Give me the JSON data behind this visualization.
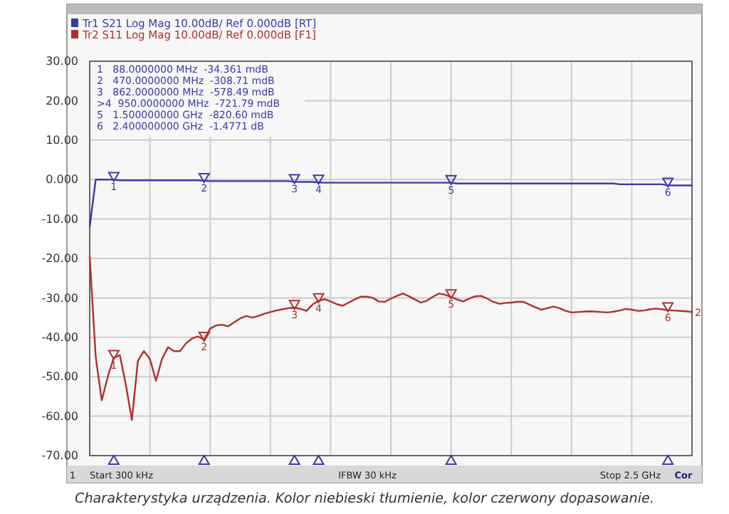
{
  "chart_data": {
    "type": "line",
    "categories": [
      null,
      null,
      null,
      null,
      null,
      null,
      null,
      null,
      null,
      null,
      null,
      null,
      null,
      null,
      null,
      null,
      null,
      null,
      null,
      null,
      null,
      null,
      null,
      null,
      null,
      null,
      null,
      null,
      null,
      null,
      null,
      null,
      null,
      null,
      null,
      null,
      null,
      null,
      null,
      null,
      null,
      null,
      null,
      null,
      null,
      null,
      null,
      null,
      null,
      null,
      null,
      null,
      null,
      null,
      null,
      null,
      null,
      null,
      null,
      null,
      null,
      null,
      null,
      null,
      null,
      null,
      null,
      null,
      null,
      null,
      null,
      null,
      null,
      null,
      null,
      null,
      null,
      null,
      null,
      null,
      null,
      null,
      null,
      null,
      null,
      null,
      null,
      null,
      null,
      null,
      null,
      null,
      null,
      null,
      null,
      null,
      null,
      null,
      null,
      null,
      null
    ],
    "ylim": [
      -70,
      30
    ],
    "yticks": [
      {
        "value": 30,
        "label": "30.00"
      },
      {
        "value": 20,
        "label": "20.00"
      },
      {
        "value": 10,
        "label": "10.00"
      },
      {
        "value": 0,
        "label": "0.000"
      },
      {
        "value": -10,
        "label": "-10.00"
      },
      {
        "value": -20,
        "label": "-20.00"
      },
      {
        "value": -30,
        "label": "-30.00"
      },
      {
        "value": -40,
        "label": "-40.00"
      },
      {
        "value": -50,
        "label": "-50.00"
      },
      {
        "value": -60,
        "label": "-60.00"
      },
      {
        "value": -70,
        "label": "-70.00"
      }
    ],
    "grid": true,
    "legend": "top left",
    "marker": "none",
    "line_style": "solid",
    "series": [
      {
        "name": "Tr1 S21 Log Mag 10.00dB/ Ref 0.000dB [RT]",
        "color": "#3a3aa8",
        "values": [
          -12,
          0,
          0,
          0,
          -0.034,
          -0.2,
          -0.2,
          -0.2,
          -0.2,
          -0.2,
          -0.2,
          -0.2,
          -0.2,
          -0.2,
          -0.2,
          -0.2,
          -0.2,
          -0.2,
          -0.2,
          -0.309,
          -0.4,
          -0.4,
          -0.4,
          -0.4,
          -0.4,
          -0.4,
          -0.4,
          -0.4,
          -0.4,
          -0.4,
          -0.4,
          -0.4,
          -0.4,
          -0.4,
          -0.578,
          -0.6,
          -0.6,
          -0.6,
          -0.722,
          -0.8,
          -0.8,
          -0.8,
          -0.8,
          -0.8,
          -0.8,
          -0.8,
          -0.8,
          -0.8,
          -0.8,
          -0.8,
          -0.8,
          -0.8,
          -0.8,
          -0.8,
          -0.8,
          -0.8,
          -0.8,
          -0.8,
          -0.8,
          -0.8,
          -0.821,
          -1,
          -1,
          -1,
          -1,
          -1,
          -1,
          -1,
          -1,
          -1,
          -1,
          -1,
          -1,
          -1,
          -1,
          -1,
          -1,
          -1,
          -1,
          -1,
          -1,
          -1,
          -1,
          -1,
          -1,
          -1,
          -1,
          -1,
          -1.2,
          -1.2,
          -1.2,
          -1.2,
          -1.2,
          -1.2,
          -1.2,
          -1.2,
          -1.477,
          -1.5,
          -1.5,
          -1.5,
          -1.5
        ]
      },
      {
        "name": "Tr2 S11 Log Mag 10.00dB/ Ref 0.000dB [F1]",
        "color": "#b03030",
        "values": [
          -19.5,
          -45,
          -56,
          -50,
          -45.2,
          -44.5,
          -52,
          -61,
          -46,
          -43.5,
          -45.5,
          -51,
          -45.5,
          -42.5,
          -43.5,
          -43.5,
          -41.5,
          -40.3,
          -39.8,
          -40.6,
          -37.8,
          -37,
          -36.8,
          -37.2,
          -36.2,
          -35.2,
          -34.6,
          -35,
          -34.6,
          -34,
          -33.6,
          -33.2,
          -32.9,
          -32.6,
          -32.5,
          -32.8,
          -33.3,
          -31.7,
          -30.8,
          -30.3,
          -30.9,
          -31.6,
          -32,
          -31.2,
          -30.4,
          -29.7,
          -29.7,
          -30,
          -30.9,
          -31,
          -30.2,
          -29.5,
          -28.9,
          -29.6,
          -30.4,
          -31.2,
          -30.7,
          -29.7,
          -28.9,
          -29.2,
          -29.8,
          -30.4,
          -30.9,
          -30.2,
          -29.6,
          -29.5,
          -30.2,
          -31,
          -31.5,
          -31.3,
          -31.2,
          -31,
          -31,
          -31.7,
          -32.4,
          -33,
          -32.6,
          -32.2,
          -32.6,
          -33.3,
          -33.7,
          -33.6,
          -33.5,
          -33.4,
          -33.5,
          -33.6,
          -33.7,
          -33.5,
          -33.2,
          -32.8,
          -33,
          -33.3,
          -33.2,
          -32.9,
          -32.7,
          -32.9,
          -33.1,
          -33.2,
          -33.3,
          -33.4,
          -33.6
        ]
      }
    ],
    "annotations": [
      "1   88.0000000 MHz  -34.361 mdB",
      "2   470.0000000 MHz  -308.71 mdB",
      "3   862.0000000 MHz  -578.49 mdB",
      ">4  950.0000000 MHz  -721.79 mdB",
      "5   1.500000000 GHz  -820.60 mdB",
      "6   2.400000000 GHz  -1.4771 dB",
      "IFBW 30 kHz",
      "1",
      "Cor",
      "Charakterystyka urządzenia. Kolor niebieski tłumienie, kolor czerwony dopasowanie.",
      "2",
      "Start 300 kHz",
      "Stop 2.5 GHz",
      {
        "text": "1",
        "y": -0.034
      },
      {
        "text": "2",
        "y": -0.309
      },
      {
        "text": "3",
        "y": -0.578
      },
      {
        "text": "4",
        "y": -0.722
      },
      {
        "text": "5",
        "y": -0.821
      },
      {
        "text": "6",
        "y": -1.477
      },
      {
        "text": "1",
        "y": -45.2
      },
      {
        "text": "2",
        "y": -40.6
      },
      {
        "text": "3",
        "y": -32.5
      },
      {
        "text": "4",
        "y": -30.8
      },
      {
        "text": "5",
        "y": -29.8
      },
      {
        "text": "6",
        "y": -33.1
      }
    ]
  }
}
